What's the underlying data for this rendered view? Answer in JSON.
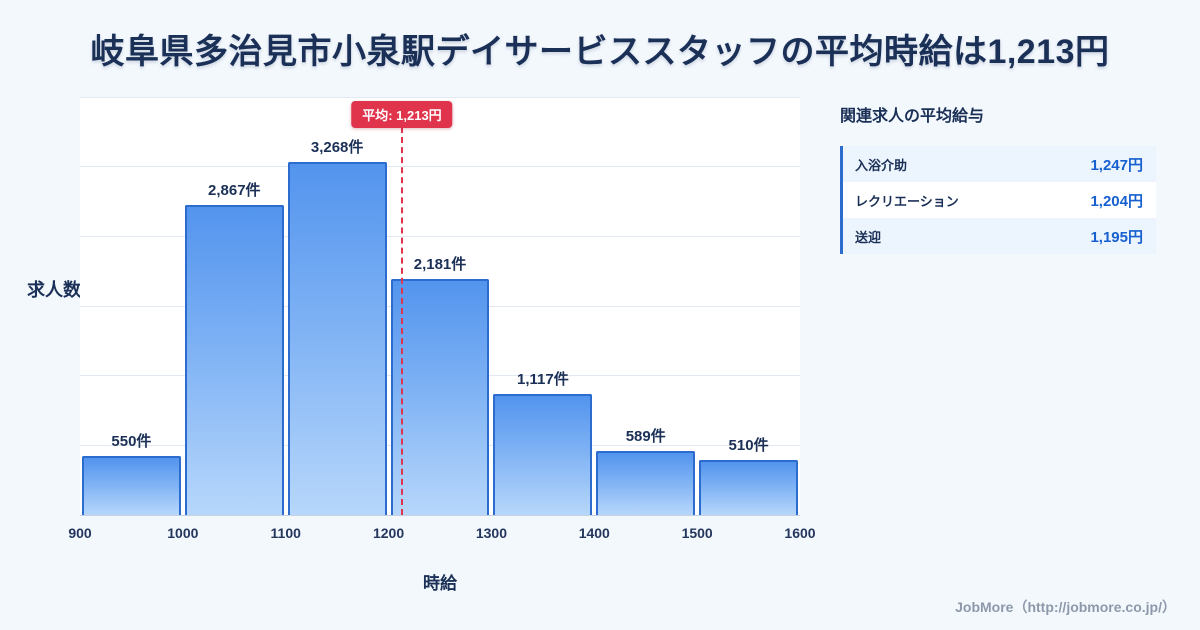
{
  "title": "岐阜県多治見市小泉駅デイサービススタッフの平均時給は1,213円",
  "chart_data": {
    "type": "bar",
    "bin_edges": [
      900,
      1000,
      1100,
      1200,
      1300,
      1400,
      1500,
      1600
    ],
    "categories": [
      "900-1000",
      "1000-1100",
      "1100-1200",
      "1200-1300",
      "1300-1400",
      "1400-1500",
      "1500-1600"
    ],
    "values": [
      550,
      2867,
      3268,
      2181,
      1117,
      589,
      510
    ],
    "value_labels": [
      "550件",
      "2,867件",
      "3,268件",
      "2,181件",
      "1,117件",
      "589件",
      "510件"
    ],
    "xlabel": "時給",
    "ylabel": "求人数",
    "xlim": [
      900,
      1600
    ],
    "ylim": [
      0,
      3870
    ],
    "average": 1213,
    "average_label": "平均: 1,213円",
    "grid": "horizontal",
    "legend": "none",
    "bar_color_top": "#5394ee",
    "bar_color_bottom": "#b7d7fb",
    "bar_border_color": "#2c6cce",
    "average_line_color": "#e0344c"
  },
  "panel": {
    "title": "関連求人の平均給与",
    "rows": [
      {
        "label": "入浴介助",
        "value": "1,247円"
      },
      {
        "label": "レクリエーション",
        "value": "1,204円"
      },
      {
        "label": "送迎",
        "value": "1,195円"
      }
    ]
  },
  "credit": "JobMore（http://jobmore.co.jp/）",
  "colors": {
    "background": "#f3f8fd",
    "navy": "#1b3057",
    "accent_blue": "#1660cf",
    "red": "#e0344c"
  }
}
